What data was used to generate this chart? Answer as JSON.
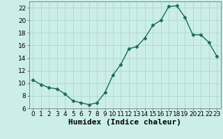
{
  "x": [
    0,
    1,
    2,
    3,
    4,
    5,
    6,
    7,
    8,
    9,
    10,
    11,
    12,
    13,
    14,
    15,
    16,
    17,
    18,
    19,
    20,
    21,
    22,
    23
  ],
  "y": [
    10.5,
    9.8,
    9.3,
    9.1,
    8.3,
    7.2,
    6.9,
    6.6,
    6.9,
    8.5,
    11.3,
    13.0,
    15.5,
    15.8,
    17.2,
    19.2,
    20.0,
    22.2,
    22.3,
    20.5,
    17.7,
    17.7,
    16.5,
    14.3
  ],
  "line_color": "#1a6b5a",
  "marker": "D",
  "marker_size": 2.5,
  "bg_color": "#cceee8",
  "grid_color": "#aad8d0",
  "xlabel": "Humidex (Indice chaleur)",
  "xlim": [
    -0.5,
    23.5
  ],
  "ylim": [
    6,
    23
  ],
  "yticks": [
    6,
    8,
    10,
    12,
    14,
    16,
    18,
    20,
    22
  ],
  "xticks": [
    0,
    1,
    2,
    3,
    4,
    5,
    6,
    7,
    8,
    9,
    10,
    11,
    12,
    13,
    14,
    15,
    16,
    17,
    18,
    19,
    20,
    21,
    22,
    23
  ],
  "tick_label_size": 6.5,
  "xlabel_size": 8,
  "line_width": 1.0
}
